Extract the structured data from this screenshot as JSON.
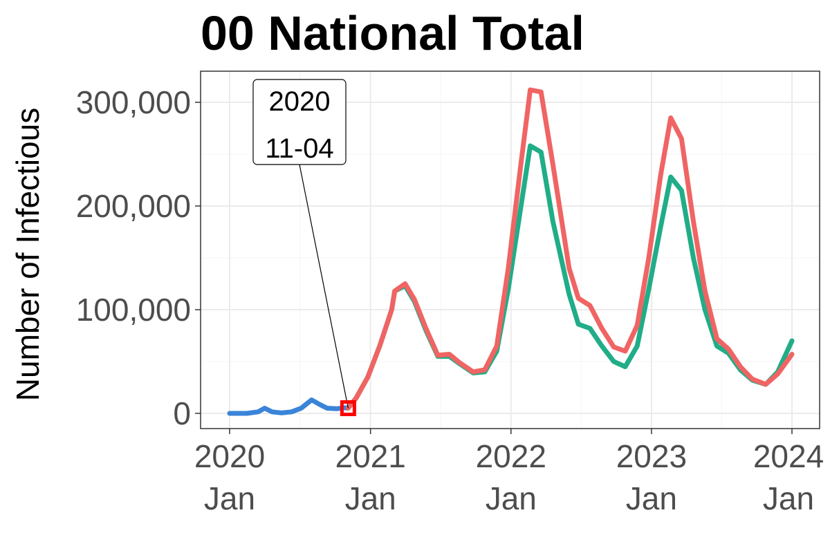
{
  "chart_data": {
    "type": "line",
    "title": "00 National Total",
    "xlabel": "",
    "ylabel": "Number of Infectious",
    "xlim": [
      "2020-01-01",
      "2024-01-01"
    ],
    "ylim": [
      0,
      300000
    ],
    "yticks": [
      "0",
      "100,000",
      "200,000",
      "300,000"
    ],
    "xticks": [
      {
        "date": "2020-01-01",
        "year": "2020",
        "month": "Jan"
      },
      {
        "date": "2021-01-01",
        "year": "2021",
        "month": "Jan"
      },
      {
        "date": "2022-01-01",
        "year": "2022",
        "month": "Jan"
      },
      {
        "date": "2023-01-01",
        "year": "2023",
        "month": "Jan"
      },
      {
        "date": "2024-01-01",
        "year": "2024",
        "month": "Jan"
      }
    ],
    "grid": true,
    "legend": "none",
    "annotation": {
      "date": "2020-11-04",
      "value": 5000,
      "line1": "2020",
      "line2": "11-04"
    },
    "series": [
      {
        "color": "#3a84d9",
        "points": [
          [
            "2020-01-01",
            0
          ],
          [
            "2020-02-15",
            0
          ],
          [
            "2020-03-15",
            1500
          ],
          [
            "2020-04-01",
            5000
          ],
          [
            "2020-04-20",
            1500
          ],
          [
            "2020-05-15",
            500
          ],
          [
            "2020-06-10",
            1500
          ],
          [
            "2020-07-05",
            5000
          ],
          [
            "2020-08-01",
            13000
          ],
          [
            "2020-08-20",
            9000
          ],
          [
            "2020-09-10",
            5000
          ],
          [
            "2020-10-05",
            4500
          ],
          [
            "2020-10-25",
            5500
          ],
          [
            "2020-11-04",
            5000
          ]
        ]
      },
      {
        "color": "#20ad87",
        "points": [
          [
            "2020-11-04",
            5000
          ],
          [
            "2020-11-25",
            15000
          ],
          [
            "2020-12-25",
            35000
          ],
          [
            "2021-01-25",
            65000
          ],
          [
            "2021-02-25",
            100000
          ],
          [
            "2021-03-05",
            118000
          ],
          [
            "2021-04-01",
            123000
          ],
          [
            "2021-04-25",
            108000
          ],
          [
            "2021-05-25",
            80000
          ],
          [
            "2021-06-25",
            55000
          ],
          [
            "2021-07-25",
            55000
          ],
          [
            "2021-08-20",
            48000
          ],
          [
            "2021-09-25",
            39000
          ],
          [
            "2021-10-25",
            40000
          ],
          [
            "2021-11-25",
            60000
          ],
          [
            "2021-12-25",
            120000
          ],
          [
            "2022-01-25",
            195000
          ],
          [
            "2022-02-20",
            258000
          ],
          [
            "2022-03-20",
            252000
          ],
          [
            "2022-04-20",
            185000
          ],
          [
            "2022-06-01",
            115000
          ],
          [
            "2022-06-25",
            86000
          ],
          [
            "2022-07-25",
            82000
          ],
          [
            "2022-08-25",
            65000
          ],
          [
            "2022-09-25",
            50000
          ],
          [
            "2022-10-25",
            45000
          ],
          [
            "2022-11-25",
            65000
          ],
          [
            "2022-12-25",
            120000
          ],
          [
            "2023-01-25",
            180000
          ],
          [
            "2023-02-20",
            228000
          ],
          [
            "2023-03-20",
            215000
          ],
          [
            "2023-04-20",
            150000
          ],
          [
            "2023-05-20",
            100000
          ],
          [
            "2023-06-20",
            65000
          ],
          [
            "2023-07-20",
            58000
          ],
          [
            "2023-08-20",
            42000
          ],
          [
            "2023-09-20",
            32000
          ],
          [
            "2023-10-25",
            28000
          ],
          [
            "2023-11-25",
            40000
          ],
          [
            "2024-01-01",
            70000
          ]
        ]
      },
      {
        "color": "#f06464",
        "points": [
          [
            "2020-11-04",
            5000
          ],
          [
            "2020-11-25",
            15000
          ],
          [
            "2020-12-25",
            35000
          ],
          [
            "2021-01-25",
            65000
          ],
          [
            "2021-02-25",
            100000
          ],
          [
            "2021-03-05",
            118000
          ],
          [
            "2021-04-01",
            125000
          ],
          [
            "2021-04-25",
            110000
          ],
          [
            "2021-05-25",
            82000
          ],
          [
            "2021-06-25",
            56000
          ],
          [
            "2021-07-25",
            57000
          ],
          [
            "2021-08-20",
            49000
          ],
          [
            "2021-09-25",
            40000
          ],
          [
            "2021-10-25",
            42000
          ],
          [
            "2021-11-25",
            65000
          ],
          [
            "2021-12-25",
            140000
          ],
          [
            "2022-01-25",
            235000
          ],
          [
            "2022-02-20",
            312000
          ],
          [
            "2022-03-20",
            310000
          ],
          [
            "2022-04-20",
            240000
          ],
          [
            "2022-06-01",
            140000
          ],
          [
            "2022-06-25",
            111000
          ],
          [
            "2022-07-25",
            104000
          ],
          [
            "2022-08-25",
            82000
          ],
          [
            "2022-09-25",
            64000
          ],
          [
            "2022-10-25",
            60000
          ],
          [
            "2022-11-25",
            85000
          ],
          [
            "2022-12-25",
            150000
          ],
          [
            "2023-01-25",
            230000
          ],
          [
            "2023-02-20",
            285000
          ],
          [
            "2023-03-20",
            265000
          ],
          [
            "2023-04-20",
            185000
          ],
          [
            "2023-05-20",
            118000
          ],
          [
            "2023-06-20",
            72000
          ],
          [
            "2023-07-20",
            62000
          ],
          [
            "2023-08-20",
            45000
          ],
          [
            "2023-09-20",
            33000
          ],
          [
            "2023-10-25",
            28000
          ],
          [
            "2023-11-25",
            38000
          ],
          [
            "2024-01-01",
            57000
          ]
        ]
      }
    ]
  }
}
